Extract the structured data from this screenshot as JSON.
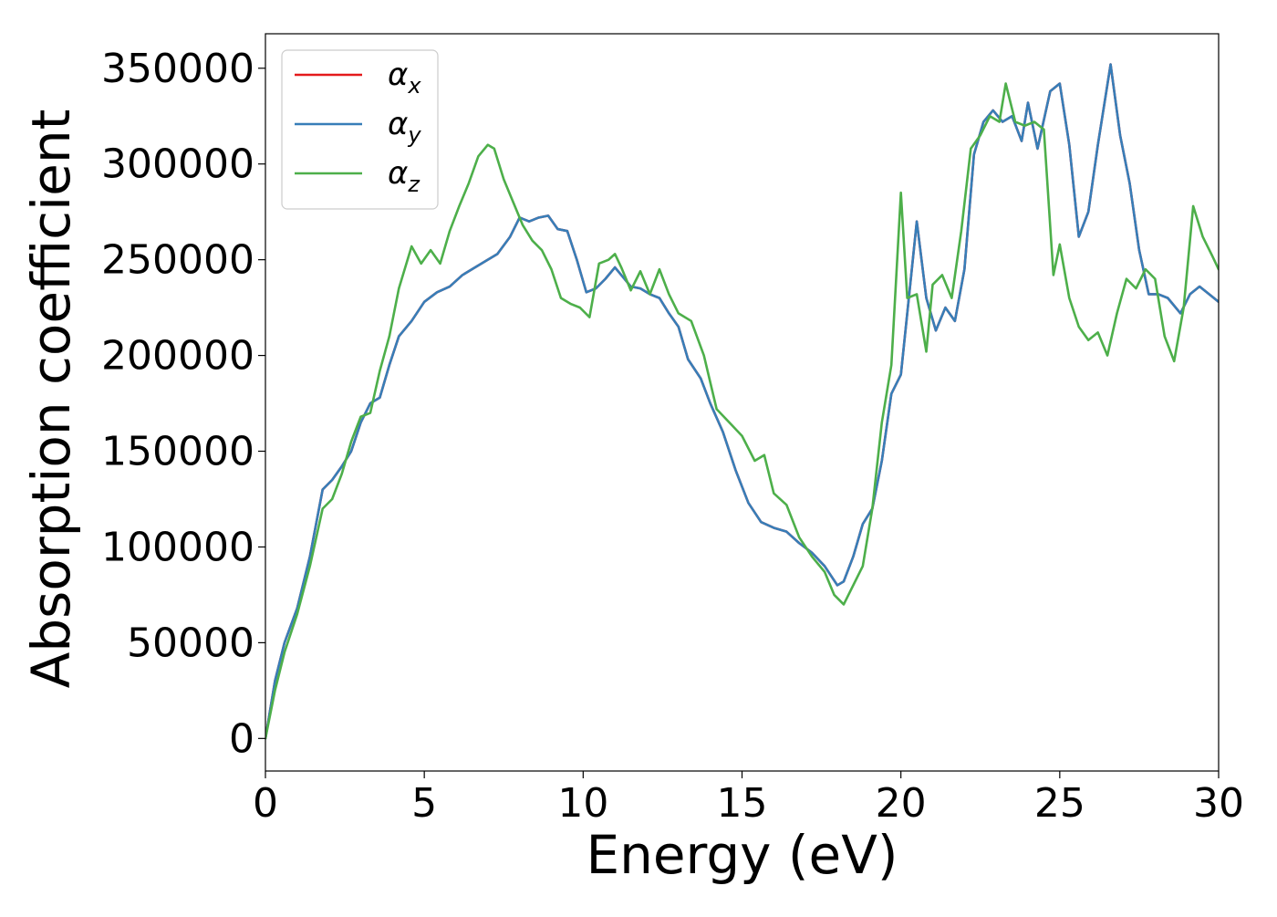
{
  "chart_data": {
    "type": "line",
    "title": "",
    "xlabel": "Energy (eV)",
    "ylabel": "Absorption coefficient",
    "xlim": [
      0,
      30
    ],
    "ylim": [
      -17000,
      368000
    ],
    "xticks": [
      0,
      5,
      10,
      15,
      20,
      25,
      30
    ],
    "yticks": [
      0,
      50000,
      100000,
      150000,
      200000,
      250000,
      300000,
      350000
    ],
    "grid": false,
    "legend_position": "top-left",
    "legend": [
      {
        "base": "α",
        "sub": "x",
        "color": "#e41a1c"
      },
      {
        "base": "α",
        "sub": "y",
        "color": "#377eb8"
      },
      {
        "base": "α",
        "sub": "z",
        "color": "#4daf4a"
      }
    ],
    "series": [
      {
        "name": "αx",
        "color": "#e41a1c",
        "x": [
          0,
          0.3,
          0.6,
          1.0,
          1.4,
          1.8,
          2.1,
          2.4,
          2.7,
          3.0,
          3.3,
          3.6,
          3.9,
          4.2,
          4.6,
          5.0,
          5.4,
          5.8,
          6.2,
          6.6,
          7.0,
          7.3,
          7.7,
          8.0,
          8.3,
          8.6,
          8.9,
          9.2,
          9.5,
          9.8,
          10.1,
          10.4,
          10.7,
          11.0,
          11.2,
          11.5,
          11.8,
          12.1,
          12.4,
          12.7,
          13.0,
          13.3,
          13.7,
          14.0,
          14.4,
          14.8,
          15.2,
          15.6,
          16.0,
          16.4,
          16.8,
          17.2,
          17.6,
          18.0,
          18.2,
          18.5,
          18.8,
          19.1,
          19.4,
          19.7,
          20.0,
          20.3,
          20.5,
          20.8,
          21.1,
          21.4,
          21.7,
          22.0,
          22.3,
          22.6,
          22.9,
          23.2,
          23.5,
          23.8,
          24.0,
          24.3,
          24.7,
          25.0,
          25.3,
          25.6,
          25.9,
          26.2,
          26.6,
          26.9,
          27.2,
          27.5,
          27.8,
          28.1,
          28.4,
          28.8,
          29.1,
          29.4,
          29.7,
          30.0
        ],
        "y": [
          0,
          30000,
          50000,
          68000,
          95000,
          130000,
          135000,
          142000,
          150000,
          165000,
          175000,
          178000,
          195000,
          210000,
          218000,
          228000,
          233000,
          236000,
          242000,
          246000,
          250000,
          253000,
          262000,
          272000,
          270000,
          272000,
          273000,
          266000,
          265000,
          250000,
          233000,
          235000,
          240000,
          246000,
          242000,
          236000,
          235000,
          232000,
          230000,
          222000,
          215000,
          198000,
          188000,
          175000,
          160000,
          140000,
          123000,
          113000,
          110000,
          108000,
          102000,
          97000,
          90000,
          80000,
          82000,
          95000,
          112000,
          120000,
          145000,
          180000,
          190000,
          238000,
          270000,
          230000,
          213000,
          225000,
          218000,
          245000,
          305000,
          322000,
          328000,
          322000,
          325000,
          312000,
          332000,
          308000,
          338000,
          342000,
          310000,
          262000,
          275000,
          310000,
          352000,
          315000,
          290000,
          255000,
          232000,
          232000,
          230000,
          222000,
          232000,
          236000,
          232000,
          228000
        ]
      },
      {
        "name": "αy",
        "color": "#377eb8",
        "x": [
          0,
          0.3,
          0.6,
          1.0,
          1.4,
          1.8,
          2.1,
          2.4,
          2.7,
          3.0,
          3.3,
          3.6,
          3.9,
          4.2,
          4.6,
          5.0,
          5.4,
          5.8,
          6.2,
          6.6,
          7.0,
          7.3,
          7.7,
          8.0,
          8.3,
          8.6,
          8.9,
          9.2,
          9.5,
          9.8,
          10.1,
          10.4,
          10.7,
          11.0,
          11.2,
          11.5,
          11.8,
          12.1,
          12.4,
          12.7,
          13.0,
          13.3,
          13.7,
          14.0,
          14.4,
          14.8,
          15.2,
          15.6,
          16.0,
          16.4,
          16.8,
          17.2,
          17.6,
          18.0,
          18.2,
          18.5,
          18.8,
          19.1,
          19.4,
          19.7,
          20.0,
          20.3,
          20.5,
          20.8,
          21.1,
          21.4,
          21.7,
          22.0,
          22.3,
          22.6,
          22.9,
          23.2,
          23.5,
          23.8,
          24.0,
          24.3,
          24.7,
          25.0,
          25.3,
          25.6,
          25.9,
          26.2,
          26.6,
          26.9,
          27.2,
          27.5,
          27.8,
          28.1,
          28.4,
          28.8,
          29.1,
          29.4,
          29.7,
          30.0
        ],
        "y": [
          0,
          30000,
          50000,
          68000,
          95000,
          130000,
          135000,
          142000,
          150000,
          165000,
          175000,
          178000,
          195000,
          210000,
          218000,
          228000,
          233000,
          236000,
          242000,
          246000,
          250000,
          253000,
          262000,
          272000,
          270000,
          272000,
          273000,
          266000,
          265000,
          250000,
          233000,
          235000,
          240000,
          246000,
          242000,
          236000,
          235000,
          232000,
          230000,
          222000,
          215000,
          198000,
          188000,
          175000,
          160000,
          140000,
          123000,
          113000,
          110000,
          108000,
          102000,
          97000,
          90000,
          80000,
          82000,
          95000,
          112000,
          120000,
          145000,
          180000,
          190000,
          238000,
          270000,
          230000,
          213000,
          225000,
          218000,
          245000,
          305000,
          322000,
          328000,
          322000,
          325000,
          312000,
          332000,
          308000,
          338000,
          342000,
          310000,
          262000,
          275000,
          310000,
          352000,
          315000,
          290000,
          255000,
          232000,
          232000,
          230000,
          222000,
          232000,
          236000,
          232000,
          228000
        ]
      },
      {
        "name": "αz",
        "color": "#4daf4a",
        "x": [
          0,
          0.3,
          0.6,
          1.0,
          1.4,
          1.8,
          2.1,
          2.4,
          2.7,
          3.0,
          3.3,
          3.6,
          3.9,
          4.2,
          4.6,
          4.9,
          5.2,
          5.5,
          5.8,
          6.1,
          6.4,
          6.7,
          7.0,
          7.2,
          7.5,
          7.8,
          8.1,
          8.4,
          8.7,
          9.0,
          9.3,
          9.6,
          9.9,
          10.2,
          10.5,
          10.8,
          11.0,
          11.2,
          11.5,
          11.8,
          12.1,
          12.4,
          12.7,
          13.0,
          13.4,
          13.8,
          14.2,
          14.6,
          15.0,
          15.4,
          15.7,
          16.0,
          16.4,
          16.8,
          17.2,
          17.6,
          17.9,
          18.2,
          18.5,
          18.8,
          19.1,
          19.4,
          19.7,
          20.0,
          20.2,
          20.5,
          20.8,
          21.0,
          21.3,
          21.6,
          21.9,
          22.2,
          22.5,
          22.8,
          23.1,
          23.3,
          23.6,
          23.9,
          24.2,
          24.5,
          24.8,
          25.0,
          25.3,
          25.6,
          25.9,
          26.2,
          26.5,
          26.8,
          27.1,
          27.4,
          27.7,
          28.0,
          28.3,
          28.6,
          28.9,
          29.2,
          29.5,
          29.8,
          30.0
        ],
        "y": [
          0,
          25000,
          45000,
          65000,
          90000,
          120000,
          125000,
          138000,
          155000,
          168000,
          170000,
          192000,
          210000,
          235000,
          257000,
          248000,
          255000,
          248000,
          265000,
          278000,
          290000,
          304000,
          310000,
          308000,
          292000,
          280000,
          268000,
          260000,
          255000,
          245000,
          230000,
          227000,
          225000,
          220000,
          248000,
          250000,
          253000,
          246000,
          234000,
          244000,
          232000,
          245000,
          232000,
          222000,
          218000,
          200000,
          172000,
          165000,
          158000,
          145000,
          148000,
          128000,
          122000,
          105000,
          95000,
          87000,
          75000,
          70000,
          80000,
          90000,
          120000,
          165000,
          195000,
          285000,
          230000,
          232000,
          202000,
          237000,
          242000,
          230000,
          265000,
          308000,
          315000,
          325000,
          322000,
          342000,
          322000,
          320000,
          322000,
          318000,
          242000,
          258000,
          230000,
          215000,
          208000,
          212000,
          200000,
          222000,
          240000,
          235000,
          245000,
          240000,
          210000,
          197000,
          225000,
          278000,
          262000,
          252000,
          245000
        ]
      }
    ]
  }
}
